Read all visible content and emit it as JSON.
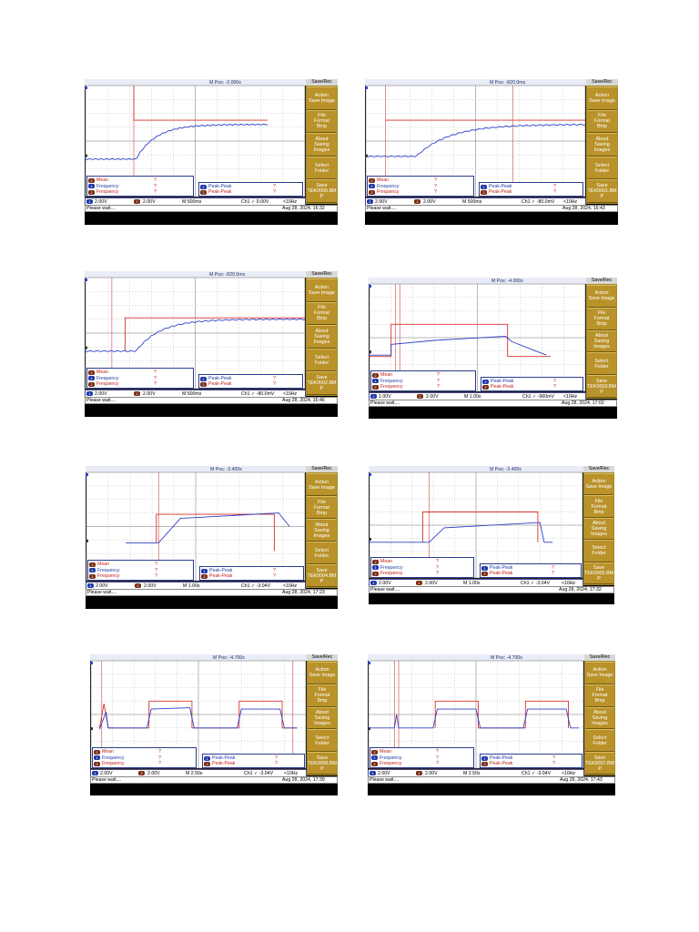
{
  "colors": {
    "trace_red": "#d8322a",
    "trace_blue": "#3040c8",
    "grid": "#9a9a9a",
    "cursor": "#c0201a",
    "menu": "#b9922a"
  },
  "scopes": [
    {
      "mpos": "M Pos: -2.000s",
      "ch1": "2.00V",
      "ch2": "2.00V",
      "timebase": "M 500ms",
      "trigger": "Ch1 ✓ 0.00V",
      "freq": "<10Hz",
      "status": "Please wait....",
      "datetime": "Aug 28, 2024, 16:32",
      "file": "TEK0000.BM\nP",
      "meas_left": [
        {
          "label": "Mean",
          "value": "?",
          "ch": "2"
        },
        {
          "label": "Frequency",
          "value": "?",
          "ch": "1"
        },
        {
          "label": "Frequency",
          "value": "?",
          "ch": "2"
        }
      ],
      "meas_right": [
        {
          "label": "Peak-Peak",
          "value": "?",
          "ch": "1"
        },
        {
          "label": "Peak-Peak",
          "value": "?",
          "ch": "2"
        }
      ]
    },
    {
      "mpos": "M Pos: -820.0ms",
      "ch1": "2.00V",
      "ch2": "2.00V",
      "timebase": "M 500ms",
      "trigger": "Ch1 ✓ -80.0mV",
      "freq": "<10Hz",
      "status": "Please wait....",
      "datetime": "Aug 28, 2024, 16:43",
      "file": "TEK0001.BM\nP",
      "meas_left": [
        {
          "label": "Mean",
          "value": "?",
          "ch": "2"
        },
        {
          "label": "Frequency",
          "value": "?",
          "ch": "1"
        },
        {
          "label": "Frequency",
          "value": "?",
          "ch": "2"
        }
      ],
      "meas_right": [
        {
          "label": "Peak-Peak",
          "value": "?",
          "ch": "1"
        },
        {
          "label": "Peak-Peak",
          "value": "?",
          "ch": "2"
        }
      ]
    },
    {
      "mpos": "M Pos: -820.0ms",
      "ch1": "2.00V",
      "ch2": "2.00V",
      "timebase": "M 500ms",
      "trigger": "Ch1 ✓ -80.0mV",
      "freq": "<10Hz",
      "status": "Please wait....",
      "datetime": "Aug 28, 2024, 16:46",
      "file": "TEK0002.BM\nP",
      "meas_left": [
        {
          "label": "Mean",
          "value": "?",
          "ch": "2"
        },
        {
          "label": "Frequency",
          "value": "?",
          "ch": "1"
        },
        {
          "label": "Frequency",
          "value": "?",
          "ch": "2"
        }
      ],
      "meas_right": [
        {
          "label": "Peak-Peak",
          "value": "?",
          "ch": "1"
        },
        {
          "label": "Peak-Peak",
          "value": "?",
          "ch": "2"
        }
      ]
    },
    {
      "mpos": "M Pos: -4.000s",
      "ch1": "1.00V",
      "ch2": "2.00V",
      "timebase": "M 1.00s",
      "trigger": "Ch1 ✓ -960mV",
      "freq": "<10Hz",
      "status": "Please wait....",
      "datetime": "Aug 28, 2024, 17:02",
      "file": "TEK0003.BM\nP",
      "meas_left": [
        {
          "label": "Mean",
          "value": "?",
          "ch": "2"
        },
        {
          "label": "Frequency",
          "value": "?",
          "ch": "1"
        },
        {
          "label": "Frequency",
          "value": "?",
          "ch": "2"
        }
      ],
      "meas_right": [
        {
          "label": "Peak-Peak",
          "value": "?",
          "ch": "1"
        },
        {
          "label": "Peak-Peak",
          "value": "?",
          "ch": "2"
        }
      ]
    },
    {
      "mpos": "M Pos: -3.400s",
      "ch1": "2.00V",
      "ch2": "2.00V",
      "timebase": "M 1.00s",
      "trigger": "Ch1 ✓ -3.04V",
      "freq": "<10Hz",
      "status": "Please wait....",
      "datetime": "Aug 28, 2024, 17:23",
      "file": "TEK0004.BM\nP",
      "meas_left": [
        {
          "label": "Mean",
          "value": "?",
          "ch": "2"
        },
        {
          "label": "Frequency",
          "value": "?",
          "ch": "1"
        },
        {
          "label": "Frequency",
          "value": "?",
          "ch": "2"
        }
      ],
      "meas_right": [
        {
          "label": "Peak-Peak",
          "value": "?",
          "ch": "1"
        },
        {
          "label": "Peak-Peak",
          "value": "?",
          "ch": "2"
        }
      ]
    },
    {
      "mpos": "M Pos: -3.400s",
      "ch1": "2.00V",
      "ch2": "2.00V",
      "timebase": "M 1.00s",
      "trigger": "Ch1 ✓ -3.04V",
      "freq": "<10Hz",
      "status": "Please wait....",
      "datetime": "Aug 28, 2024, 17:32",
      "file": "TEK0005.BM\nP",
      "meas_left": [
        {
          "label": "Mean",
          "value": "?",
          "ch": "2"
        },
        {
          "label": "Frequency",
          "value": "?",
          "ch": "1"
        },
        {
          "label": "Frequency",
          "value": "?",
          "ch": "2"
        }
      ],
      "meas_right": [
        {
          "label": "Peak-Peak",
          "value": "?",
          "ch": "1"
        },
        {
          "label": "Peak-Peak",
          "value": "?",
          "ch": "2"
        }
      ]
    },
    {
      "mpos": "M Pos: -4.700s",
      "ch1": "2.00V",
      "ch2": "2.00V",
      "timebase": "M 2.50s",
      "trigger": "Ch1 ✓ -3.04V",
      "freq": "<10Hz",
      "status": "Please wait....",
      "datetime": "Aug 28, 2024, 17:39",
      "file": "TEK0006.BM\nP",
      "meas_left": [
        {
          "label": "Mean",
          "value": "?",
          "ch": "2"
        },
        {
          "label": "Frequency",
          "value": "?",
          "ch": "1"
        },
        {
          "label": "Frequency",
          "value": "?",
          "ch": "2"
        }
      ],
      "meas_right": [
        {
          "label": "Peak-Peak",
          "value": "?",
          "ch": "1"
        },
        {
          "label": "Peak-Peak",
          "value": "?",
          "ch": "2"
        }
      ]
    },
    {
      "mpos": "M Pos: -4.700s",
      "ch1": "2.00V",
      "ch2": "2.00V",
      "timebase": "M 2.50s",
      "trigger": "Ch1 ✓ -3.04V",
      "freq": "<10Hz",
      "status": "Please wait....",
      "datetime": "Aug 28, 2024, 17:43",
      "file": "TEK0007.BM\nP",
      "meas_left": [
        {
          "label": "Mean",
          "value": "?",
          "ch": "2"
        },
        {
          "label": "Frequency",
          "value": "?",
          "ch": "1"
        },
        {
          "label": "Frequency",
          "value": "?",
          "ch": "2"
        }
      ],
      "meas_right": [
        {
          "label": "Peak-Peak",
          "value": "?",
          "ch": "1"
        },
        {
          "label": "Peak-Peak",
          "value": "?",
          "ch": "2"
        }
      ]
    }
  ],
  "menu": {
    "header": "Save/Rec",
    "action": "Action\nSave Image",
    "format": "File\nFormat\nBmp",
    "about": "About\nSaving\nImages",
    "folder": "Select\nFolder",
    "save": "Save"
  }
}
